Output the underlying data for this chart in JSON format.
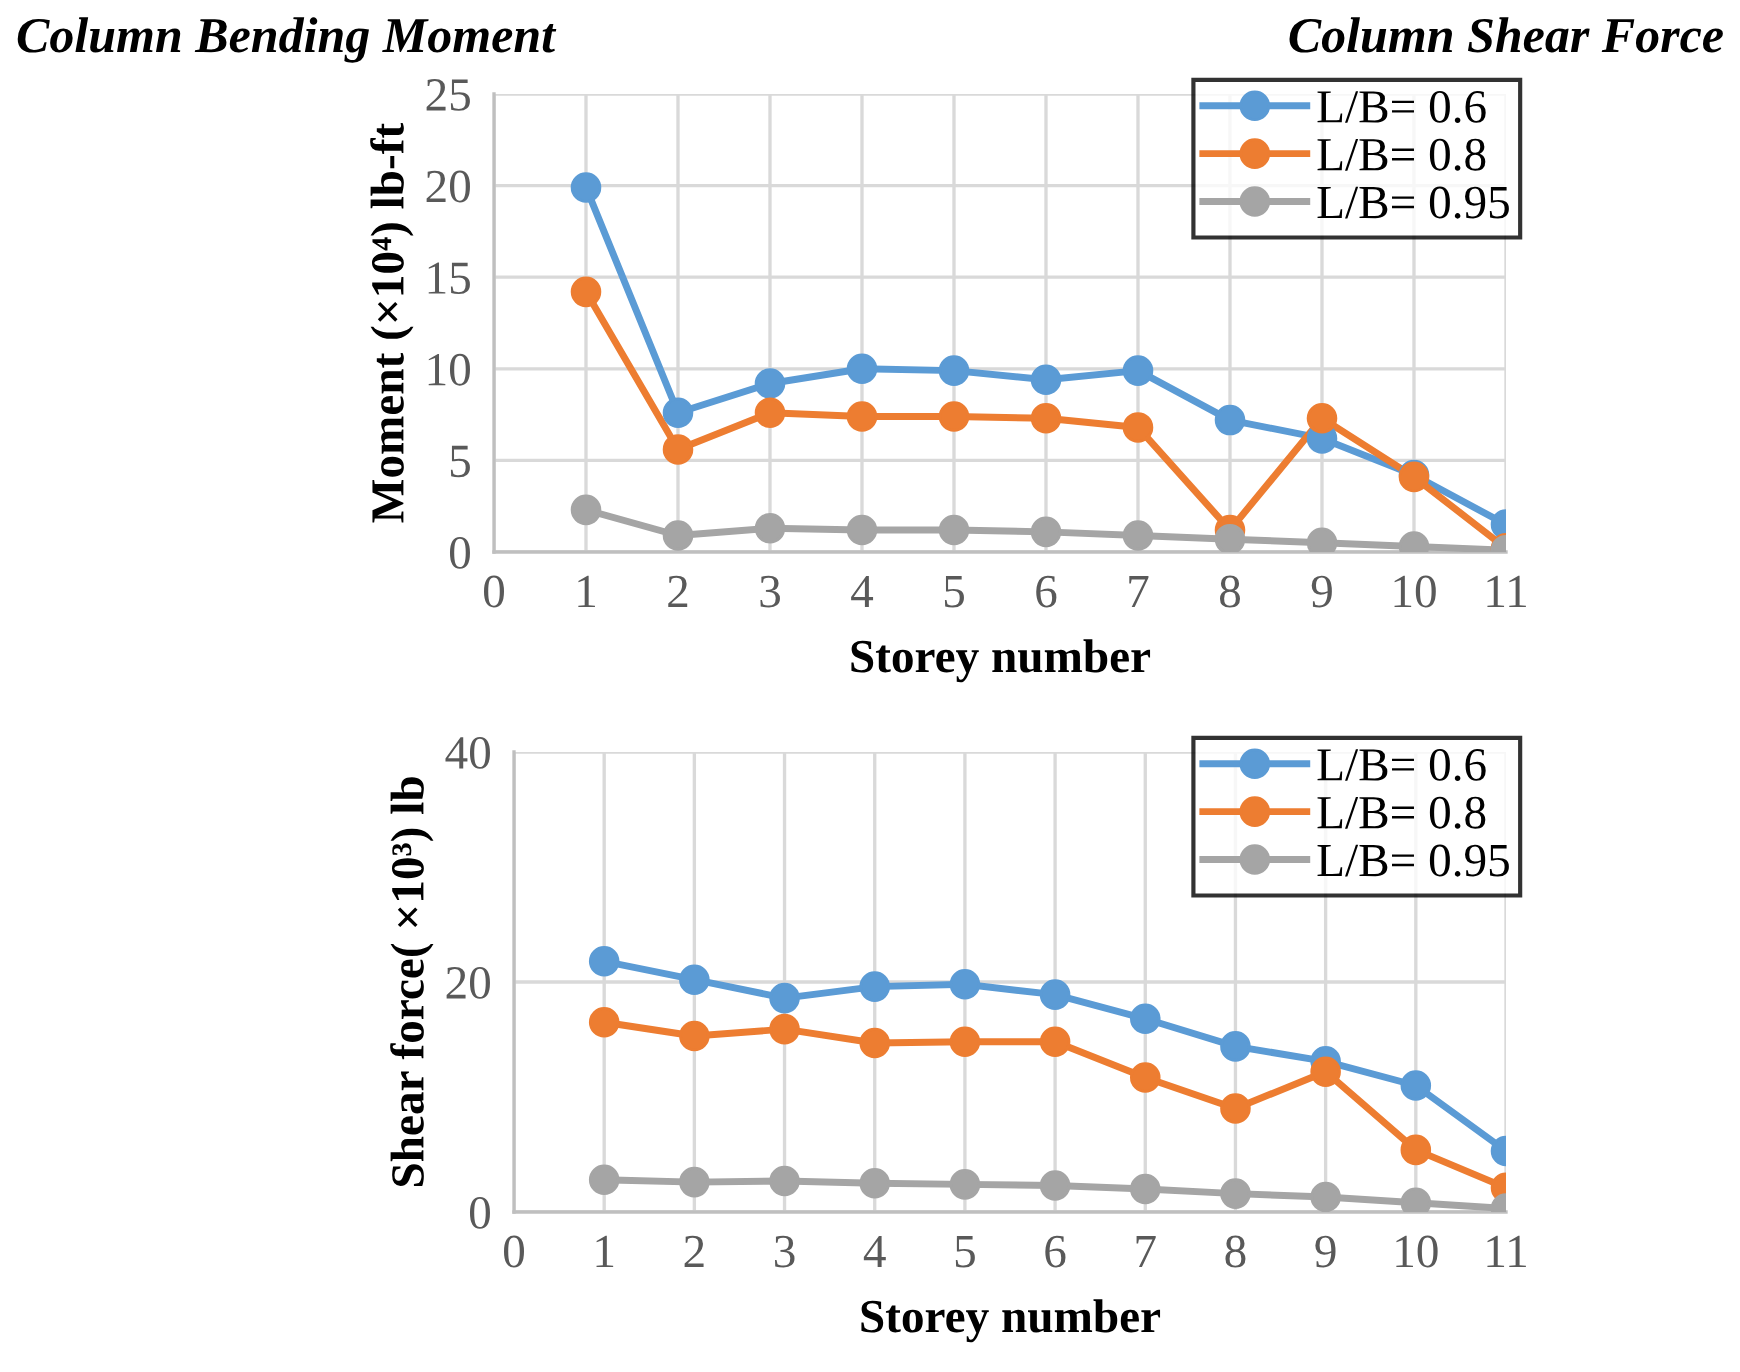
{
  "chart_data": [
    {
      "type": "line",
      "title": "Column Bending Moment",
      "annotations": [
        "Column Shear Force"
      ],
      "xlabel": "Storey number",
      "ylabel": "Moment (×10⁴) lb-ft",
      "x": [
        1,
        2,
        3,
        4,
        5,
        6,
        7,
        8,
        9,
        10,
        11
      ],
      "xlim": [
        0,
        11
      ],
      "xticks": [
        0,
        1,
        2,
        3,
        4,
        5,
        6,
        7,
        8,
        9,
        10,
        11
      ],
      "ylim": [
        0,
        25
      ],
      "yticks": [
        0,
        5,
        10,
        15,
        20,
        25
      ],
      "grid": true,
      "legend": "top right",
      "marker": "circle",
      "line_style": "solid",
      "series": [
        {
          "name": "L/B= 0.6",
          "color": "#5b9bd5",
          "values": [
            19.9,
            7.6,
            9.2,
            10.0,
            9.9,
            9.4,
            9.9,
            7.2,
            6.2,
            4.2,
            1.5
          ]
        },
        {
          "name": "L/B= 0.8",
          "color": "#ed7d31",
          "values": [
            14.2,
            5.6,
            7.6,
            7.4,
            7.4,
            7.3,
            6.8,
            1.2,
            7.3,
            4.1,
            0.2
          ]
        },
        {
          "name": "L/B= 0.95",
          "color": "#a5a5a5",
          "values": [
            2.3,
            0.9,
            1.3,
            1.2,
            1.2,
            1.1,
            0.9,
            0.7,
            0.5,
            0.3,
            0.1
          ]
        }
      ]
    },
    {
      "type": "line",
      "xlabel": "Storey number",
      "ylabel": "Shear force( ×10³) lb",
      "x": [
        1,
        2,
        3,
        4,
        5,
        6,
        7,
        8,
        9,
        10,
        11
      ],
      "xlim": [
        0,
        11
      ],
      "xticks": [
        0,
        1,
        2,
        3,
        4,
        5,
        6,
        7,
        8,
        9,
        10,
        11
      ],
      "ylim": [
        0,
        40
      ],
      "yticks": [
        0,
        20,
        40
      ],
      "grid": true,
      "legend": "top right",
      "marker": "circle",
      "line_style": "solid",
      "series": [
        {
          "name": "L/B= 0.6",
          "color": "#5b9bd5",
          "values": [
            21.8,
            20.2,
            18.6,
            19.6,
            19.8,
            18.9,
            16.8,
            14.4,
            13.1,
            11.0,
            5.3
          ]
        },
        {
          "name": "L/B= 0.8",
          "color": "#ed7d31",
          "values": [
            16.5,
            15.3,
            15.9,
            14.7,
            14.8,
            14.8,
            11.7,
            9.0,
            12.2,
            5.4,
            2.1
          ]
        },
        {
          "name": "L/B= 0.95",
          "color": "#a5a5a5",
          "values": [
            2.8,
            2.6,
            2.7,
            2.5,
            2.4,
            2.3,
            2.0,
            1.6,
            1.3,
            0.8,
            0.3
          ]
        }
      ]
    }
  ]
}
